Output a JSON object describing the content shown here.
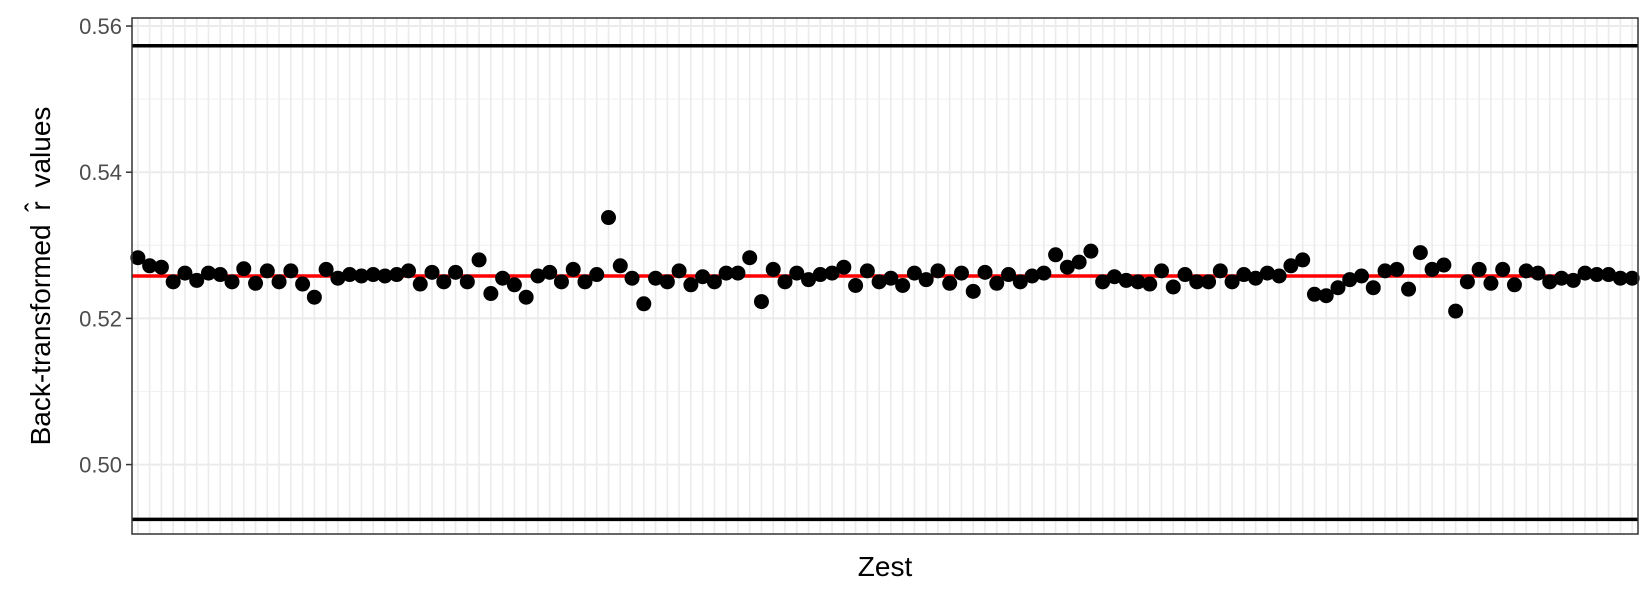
{
  "chart_data": {
    "type": "scatter",
    "xlabel": "Zest",
    "ylabel": "Back-transformed",
    "ylabel_symbol": "r̂",
    "ylabel_suffix": "values",
    "ylim": [
      0.4905,
      0.5611
    ],
    "y_ticks": [
      0.5,
      0.52,
      0.54,
      0.56
    ],
    "y_tick_labels": [
      "0.50",
      "0.52",
      "0.54",
      "0.56"
    ],
    "grid": true,
    "x_tick_labels_shown": false,
    "reference_lines": {
      "upper_bound": 0.5573,
      "lower_bound": 0.4925,
      "mean": 0.5258
    },
    "colors": {
      "points": "#000000",
      "bounds": "#000000",
      "mean_line": "#ff0000",
      "grid_major": "#ebebeb",
      "grid_minor": "#f2f2f2",
      "panel_border": "#333333"
    },
    "series": [
      {
        "values": [
          0.5283,
          0.5272,
          0.527,
          0.525,
          0.5262,
          0.5252,
          0.5262,
          0.526,
          0.525,
          0.5268,
          0.5248,
          0.5265,
          0.525,
          0.5265,
          0.5247,
          0.5229,
          0.5267,
          0.5255,
          0.526,
          0.5258,
          0.526,
          0.5258,
          0.526,
          0.5265,
          0.5247,
          0.5263,
          0.525,
          0.5263,
          0.525,
          0.528,
          0.5234,
          0.5255,
          0.5246,
          0.5229,
          0.5258,
          0.5263,
          0.525,
          0.5267,
          0.525,
          0.526,
          0.5338,
          0.5272,
          0.5255,
          0.522,
          0.5255,
          0.525,
          0.5265,
          0.5246,
          0.5257,
          0.525,
          0.5262,
          0.5262,
          0.5283,
          0.5223,
          0.5267,
          0.525,
          0.5262,
          0.5253,
          0.526,
          0.5262,
          0.527,
          0.5245,
          0.5265,
          0.525,
          0.5255,
          0.5245,
          0.5262,
          0.5253,
          0.5265,
          0.5248,
          0.5262,
          0.5237,
          0.5263,
          0.5248,
          0.526,
          0.525,
          0.5258,
          0.5262,
          0.5287,
          0.527,
          0.5277,
          0.5292,
          0.525,
          0.5257,
          0.5252,
          0.525,
          0.5247,
          0.5265,
          0.5243,
          0.526,
          0.525,
          0.525,
          0.5265,
          0.525,
          0.526,
          0.5255,
          0.5262,
          0.5258,
          0.5272,
          0.528,
          0.5233,
          0.5231,
          0.5242,
          0.5253,
          0.5258,
          0.5242,
          0.5265,
          0.5267,
          0.524,
          0.529,
          0.5267,
          0.5273,
          0.521,
          0.525,
          0.5267,
          0.5248,
          0.5267,
          0.5246,
          0.5265,
          0.5262,
          0.525,
          0.5255,
          0.5252,
          0.5262,
          0.526,
          0.526,
          0.5255,
          0.5255
        ]
      }
    ]
  }
}
